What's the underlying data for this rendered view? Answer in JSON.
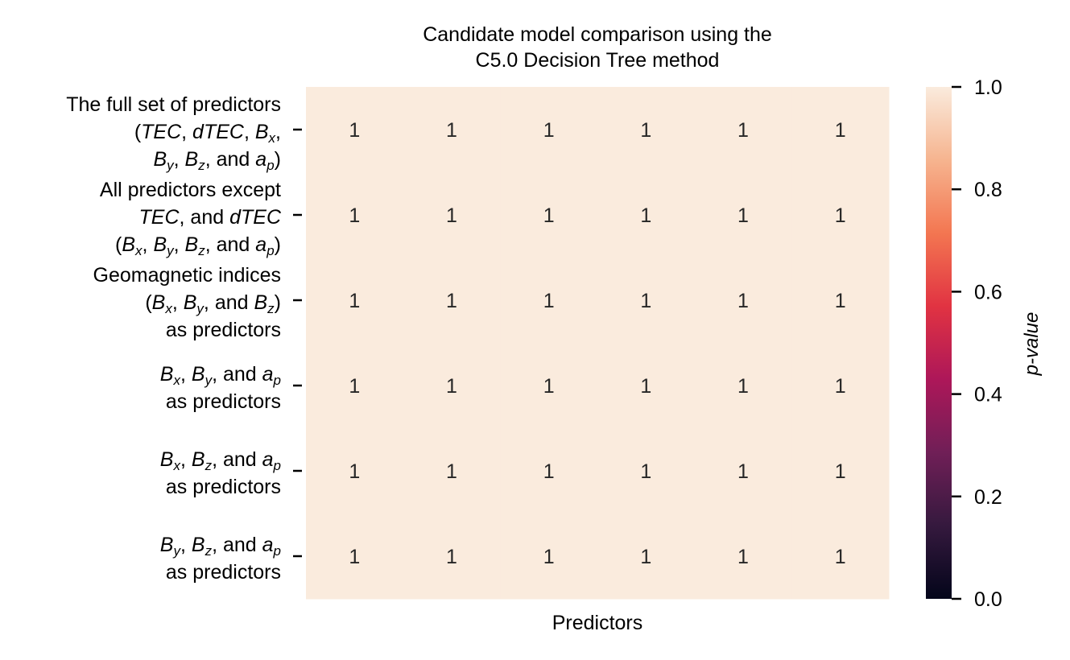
{
  "chart_data": {
    "type": "heatmap",
    "title_lines": [
      "Candidate model comparison using the",
      "C5.0 Decision Tree method"
    ],
    "xlabel": "Predictors",
    "row_labels": [
      [
        "The full set of predictors",
        "(TEC, dTEC, Bx,",
        "By, Bz, and ap)"
      ],
      [
        "All predictors except",
        "TEC, and dTEC",
        "(Bx, By, Bz, and ap)"
      ],
      [
        "Geomagnetic indices",
        "(Bx, By, and Bz)",
        "as predictors"
      ],
      [
        "Bx, By, and ap",
        "as predictors"
      ],
      [
        "Bx, Bz, and ap",
        "as predictors"
      ],
      [
        "By, Bz, and ap",
        "as predictors"
      ]
    ],
    "column_labels": [
      "",
      "",
      "",
      "",
      "",
      ""
    ],
    "values": [
      [
        1,
        1,
        1,
        1,
        1,
        1
      ],
      [
        1,
        1,
        1,
        1,
        1,
        1
      ],
      [
        1,
        1,
        1,
        1,
        1,
        1
      ],
      [
        1,
        1,
        1,
        1,
        1,
        1
      ],
      [
        1,
        1,
        1,
        1,
        1,
        1
      ],
      [
        1,
        1,
        1,
        1,
        1,
        1
      ]
    ],
    "colorbar": {
      "label": "p-value",
      "range": [
        0,
        1
      ],
      "ticks": [
        "0.0",
        "0.2",
        "0.4",
        "0.6",
        "0.8",
        "1.0"
      ],
      "colormap": "rocket",
      "colormap_stops": [
        "#03051a",
        "#35193e",
        "#701f57",
        "#ad1759",
        "#e13342",
        "#f37651",
        "#f6b48f",
        "#faebdd"
      ]
    },
    "cell_color": "#faebdd",
    "annotation_color": "#262626",
    "grid": false
  }
}
